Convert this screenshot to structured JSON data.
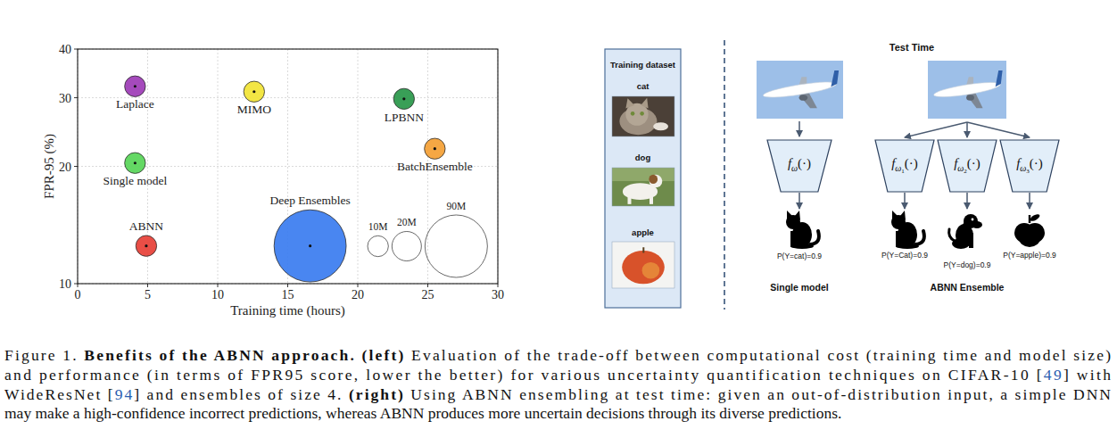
{
  "chart_data": {
    "type": "bubble",
    "xlabel": "Training time (hours)",
    "ylabel": "FPR-95 (%)",
    "xlim": [
      0,
      30
    ],
    "xticks": [
      0,
      5,
      10,
      15,
      20,
      25,
      30
    ],
    "ylim": [
      10,
      40
    ],
    "yticks": [
      10,
      20,
      30,
      40
    ],
    "log": "y",
    "grid": true,
    "series": [
      {
        "name": "Laplace",
        "color": "#a040b8",
        "x": [
          4.1
        ],
        "values": [
          32.1
        ],
        "size": [
          10
        ]
      },
      {
        "name": "MIMO",
        "color": "#f2e53a",
        "x": [
          12.6
        ],
        "values": [
          31.1
        ],
        "size": [
          10
        ]
      },
      {
        "name": "LPBNN",
        "color": "#2e9a4e",
        "x": [
          23.3
        ],
        "values": [
          29.8
        ],
        "size": [
          10
        ]
      },
      {
        "name": "BatchEnsemble",
        "color": "#f4a23a",
        "x": [
          25.5
        ],
        "values": [
          22.2
        ],
        "size": [
          10
        ]
      },
      {
        "name": "Single model",
        "color": "#5cd65c",
        "x": [
          4.1
        ],
        "values": [
          20.4
        ],
        "size": [
          10
        ]
      },
      {
        "name": "ABNN",
        "color": "#e8453c",
        "x": [
          4.9
        ],
        "values": [
          12.5
        ],
        "size": [
          10
        ]
      },
      {
        "name": "Deep Ensembles",
        "color": "#3f7ff0",
        "x": [
          16.6
        ],
        "values": [
          12.5
        ],
        "size": [
          120
        ]
      }
    ],
    "size_legend": {
      "values": [
        10,
        20,
        90
      ],
      "labels": [
        "10M",
        "20M",
        "90M"
      ]
    }
  },
  "diagram": {
    "training_dataset": {
      "title": "Training dataset",
      "items": [
        "cat",
        "dog",
        "apple"
      ]
    },
    "test_time": "Test Time",
    "single_model": {
      "network": {
        "f": "f",
        "sub": "ω",
        "arg": "(·)"
      },
      "prediction": "P(Y=cat)=0.9",
      "title": "Single model"
    },
    "ensemble": {
      "members": [
        {
          "network": {
            "f": "f",
            "sub": "ω",
            "index": "1",
            "arg": "(·)"
          },
          "prediction": "P(Y=Cat)=0.9"
        },
        {
          "network": {
            "f": "f",
            "sub": "ω",
            "index": "2",
            "arg": "(·)"
          },
          "prediction": "P(Y=dog)=0.9"
        },
        {
          "network": {
            "f": "f",
            "sub": "ω",
            "index": "3",
            "arg": "(·)"
          },
          "prediction": "P(Y=apple)=0.9"
        }
      ],
      "title": "ABNN Ensemble"
    }
  },
  "caption": {
    "lines": [
      [
        {
          "text": "Figure 1. "
        },
        {
          "text": "Benefits of the ABNN approach. (left)",
          "bold": true
        },
        {
          "text": " Evaluation of the trade-off between computational cost (training time and model size)"
        }
      ],
      [
        {
          "text": "and performance (in terms of FPR95 score, lower the better) for various uncertainty quantification techniques on CIFAR-10 ["
        },
        {
          "text": "49",
          "ref": true
        },
        {
          "text": "] with"
        }
      ],
      [
        {
          "text": "WideResNet ["
        },
        {
          "text": "94",
          "ref": true
        },
        {
          "text": "] and ensembles of size 4. "
        },
        {
          "text": "(right)",
          "bold": true
        },
        {
          "text": " Using ABNN ensembling at test time: given an out-of-distribution input, a simple DNN"
        }
      ],
      [
        {
          "text": "may make a high-confidence incorrect predictions, whereas ABNN produces more uncertain decisions through its diverse predictions."
        }
      ]
    ]
  }
}
